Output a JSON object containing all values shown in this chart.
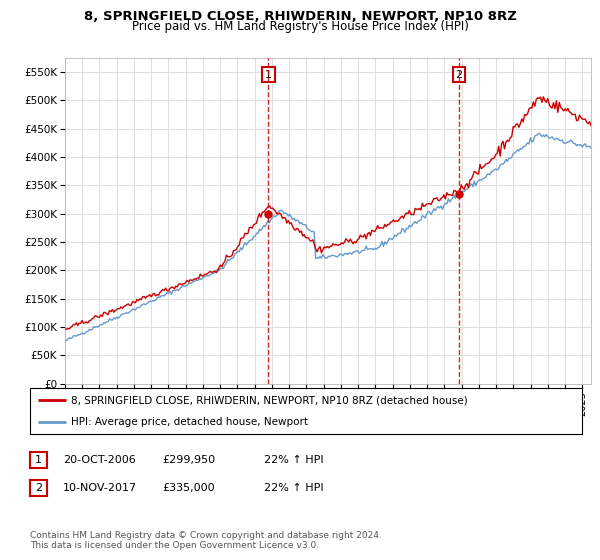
{
  "title": "8, SPRINGFIELD CLOSE, RHIWDERIN, NEWPORT, NP10 8RZ",
  "subtitle": "Price paid vs. HM Land Registry's House Price Index (HPI)",
  "legend_label_red": "8, SPRINGFIELD CLOSE, RHIWDERIN, NEWPORT, NP10 8RZ (detached house)",
  "legend_label_blue": "HPI: Average price, detached house, Newport",
  "annotation1_label": "1",
  "annotation1_date": "20-OCT-2006",
  "annotation1_price": "£299,950",
  "annotation1_hpi": "22% ↑ HPI",
  "annotation2_label": "2",
  "annotation2_date": "10-NOV-2017",
  "annotation2_price": "£335,000",
  "annotation2_hpi": "22% ↑ HPI",
  "footer": "Contains HM Land Registry data © Crown copyright and database right 2024.\nThis data is licensed under the Open Government Licence v3.0.",
  "ylim": [
    0,
    575000
  ],
  "yticks": [
    0,
    50000,
    100000,
    150000,
    200000,
    250000,
    300000,
    350000,
    400000,
    450000,
    500000,
    550000
  ],
  "ytick_labels": [
    "£0",
    "£50K",
    "£100K",
    "£150K",
    "£200K",
    "£250K",
    "£300K",
    "£350K",
    "£400K",
    "£450K",
    "£500K",
    "£550K"
  ],
  "red_color": "#cc0000",
  "blue_color": "#6699cc",
  "vline_color": "#cc0000",
  "dot1_x": 2006.8,
  "dot1_y": 299950,
  "dot2_x": 2017.85,
  "dot2_y": 335000,
  "background_color": "#ffffff",
  "grid_color": "#dddddd",
  "xmin": 1995.0,
  "xmax": 2025.5
}
